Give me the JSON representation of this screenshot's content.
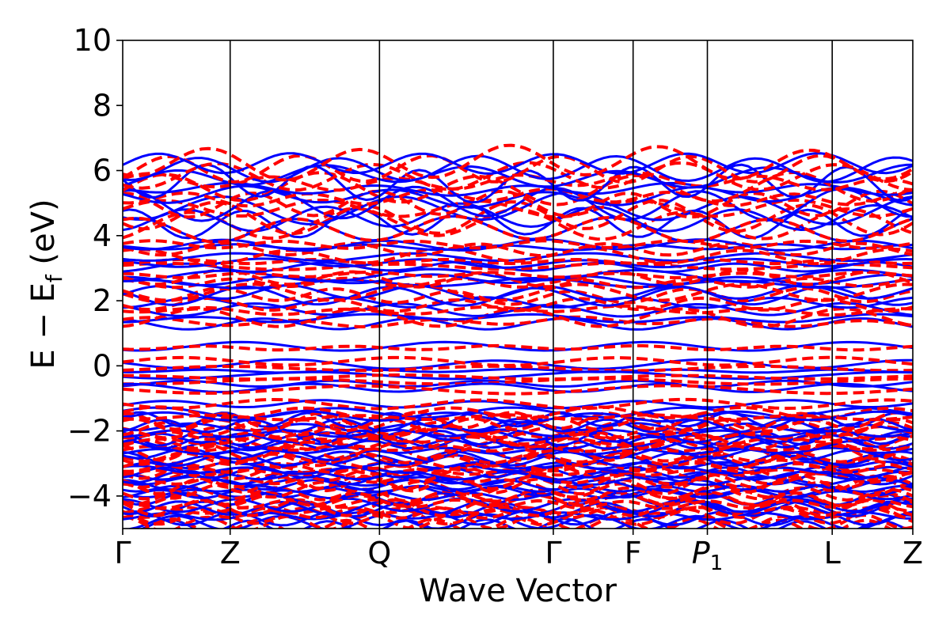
{
  "chart_data": {
    "type": "line",
    "xlabel": "Wave Vector",
    "ylabel": "E − E",
    "ylabel_sub": "f",
    "ylabel_unit": " (eV)",
    "ylim": [
      -5,
      10
    ],
    "yticks": [
      {
        "value": 10,
        "label": "10"
      },
      {
        "value": 8,
        "label": "8"
      },
      {
        "value": 6,
        "label": "6"
      },
      {
        "value": 4,
        "label": "4"
      },
      {
        "value": 2,
        "label": "2"
      },
      {
        "value": 0,
        "label": "0"
      },
      {
        "value": -2,
        "label": "−2"
      },
      {
        "value": -4,
        "label": "−4"
      }
    ],
    "kpoints": [
      {
        "label": "Γ",
        "x": 0.0
      },
      {
        "label": "Z",
        "x": 0.136
      },
      {
        "label": "Q",
        "x": 0.325
      },
      {
        "label": "Γ",
        "x": 0.545
      },
      {
        "label": "F",
        "x": 0.646
      },
      {
        "label": "P",
        "sub": "1",
        "x": 0.74
      },
      {
        "label": "L",
        "x": 0.898
      },
      {
        "label": "Z",
        "x": 1.0
      }
    ],
    "series": [
      {
        "color": "#0000ff",
        "style": "solid"
      },
      {
        "color": "#ff0000",
        "style": "dashed"
      }
    ],
    "colors": {
      "spin_up": "#0000ff",
      "spin_down": "#ff0000",
      "kpath_line": "#000000"
    },
    "band_groups": {
      "conduction_high": [
        4.4,
        4.6,
        4.8,
        5.0,
        5.2,
        5.4,
        5.6,
        5.8,
        6.0,
        6.2
      ],
      "conduction_mid": [
        2.8,
        3.0,
        3.2,
        3.4,
        3.6,
        3.75
      ],
      "conduction_low": [
        1.3,
        1.5,
        1.7,
        1.9,
        2.1,
        2.3,
        2.5,
        2.65
      ],
      "gap_states": [
        0.6,
        0.1,
        -0.1,
        -0.3,
        -0.5,
        -0.7
      ],
      "valence_top": [
        -1.2,
        -1.4,
        -1.6
      ]
    }
  }
}
